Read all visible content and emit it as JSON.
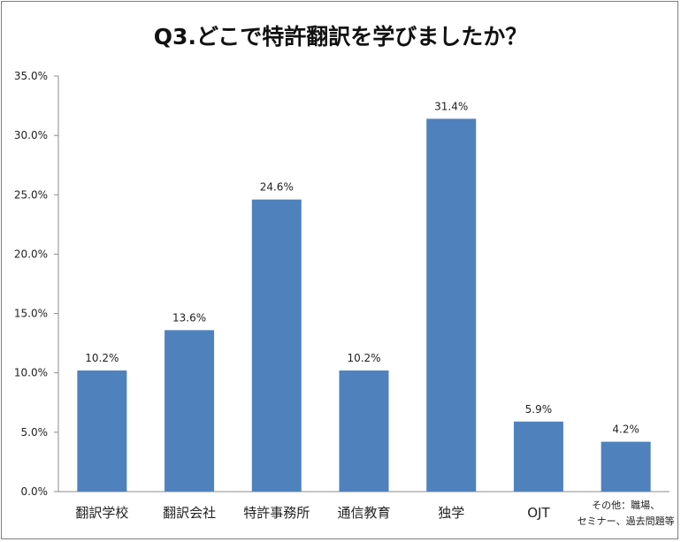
{
  "chart_data": {
    "type": "bar",
    "title": "Q3.どこで特許翻訳を学びましたか？",
    "categories": [
      "翻訳学校",
      "翻訳会社",
      "特許事務所",
      "通信教育",
      "独学",
      "OJT",
      "その他：職場、セミナー、過去問題等"
    ],
    "category_display": [
      [
        "翻訳学校"
      ],
      [
        "翻訳会社"
      ],
      [
        "特許事務所"
      ],
      [
        "通信教育"
      ],
      [
        "独学"
      ],
      [
        "OJT"
      ],
      [
        "その他：職場、",
        "セミナー、過去問題等"
      ]
    ],
    "values": [
      10.2,
      13.6,
      24.6,
      10.2,
      31.4,
      5.9,
      4.2
    ],
    "value_labels": [
      "10.2%",
      "13.6%",
      "24.6%",
      "10.2%",
      "31.4%",
      "5.9%",
      "4.2%"
    ],
    "ylim": [
      0,
      35
    ],
    "yticks": [
      "0.0%",
      "5.0%",
      "10.0%",
      "15.0%",
      "20.0%",
      "25.0%",
      "30.0%",
      "35.0%"
    ],
    "xlabel": "",
    "ylabel": "",
    "grid": false,
    "legend": "none",
    "bar_color": "#4f81bd"
  }
}
